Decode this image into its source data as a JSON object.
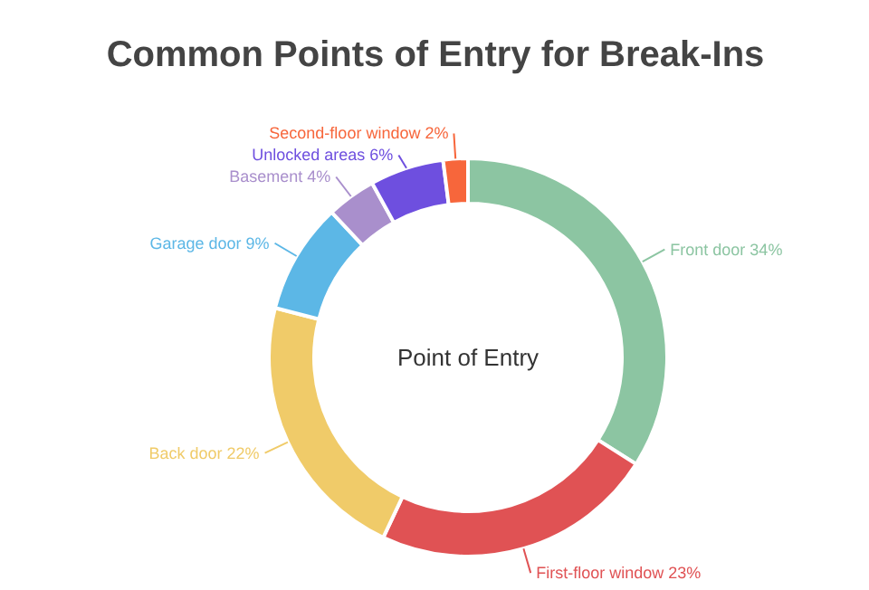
{
  "chart_data": {
    "type": "donut",
    "title": "Common Points of Entry for Break-Ins",
    "categories": [
      "Front door",
      "First-floor window",
      "Back door",
      "Garage door",
      "Basement",
      "Unlocked areas",
      "Second-floor window"
    ],
    "values": [
      34,
      23,
      22,
      9,
      4,
      6,
      2
    ],
    "value_labels": [
      "34%",
      "23%",
      "22%",
      "9%",
      "4%",
      "6%",
      "2%"
    ],
    "colors": [
      "#8cc5a2",
      "#e05254",
      "#f0cb69",
      "#5cb7e6",
      "#a98fcc",
      "#6e4fdf",
      "#f7663b"
    ],
    "annotations": [
      "Point of Entry"
    ]
  }
}
